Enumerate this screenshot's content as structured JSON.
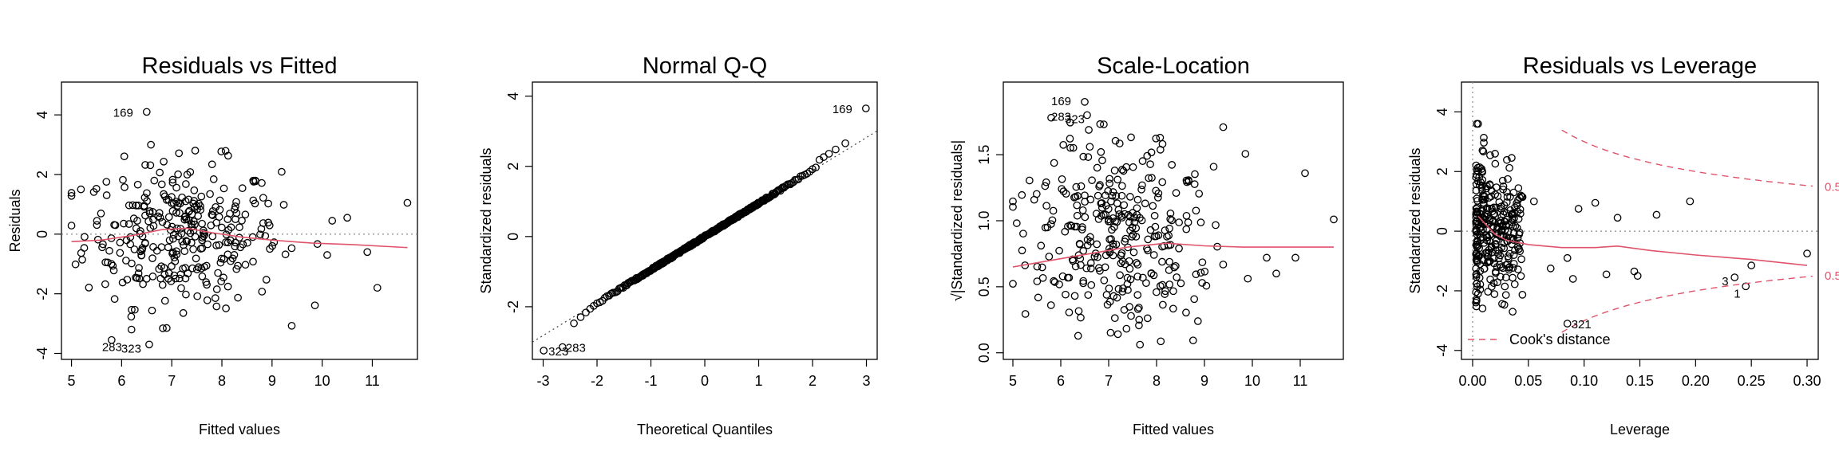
{
  "colors": {
    "smooth": "#DF536B",
    "points": "#000000",
    "reference": "#888888",
    "cook": "#DF536B"
  },
  "chart_data": [
    {
      "type": "scatter",
      "title": "Residuals vs Fitted",
      "xlabel": "Fitted values",
      "ylabel": "Residuals",
      "xlim": [
        4.8,
        11.9
      ],
      "ylim": [
        -4.2,
        5.1
      ],
      "xticks": [
        "5",
        "6",
        "7",
        "8",
        "9",
        "10",
        "11"
      ],
      "yticks": [
        "-4",
        "-2",
        "0",
        "2",
        "4"
      ],
      "reference_line": {
        "y": 0,
        "style": "dotted"
      },
      "smooth": {
        "x": [
          5.0,
          5.6,
          6.2,
          6.8,
          7.3,
          7.8,
          8.4,
          9.0,
          9.8,
          10.6,
          11.7
        ],
        "y": [
          -0.25,
          -0.2,
          -0.05,
          0.15,
          0.2,
          0.05,
          -0.1,
          -0.2,
          -0.3,
          -0.35,
          -0.45
        ]
      },
      "n_points": 330,
      "highlight": [
        {
          "x": 6.5,
          "y": 4.1,
          "label": "169"
        },
        {
          "x": 5.8,
          "y": -3.55,
          "label": "283"
        },
        {
          "x": 6.55,
          "y": -3.7,
          "label": "323"
        }
      ],
      "extra_points": [
        {
          "x": 10.2,
          "y": 0.45
        },
        {
          "x": 10.5,
          "y": 0.55
        },
        {
          "x": 10.1,
          "y": -0.7
        },
        {
          "x": 10.9,
          "y": -0.6
        },
        {
          "x": 11.1,
          "y": -1.8
        },
        {
          "x": 11.7,
          "y": 1.05
        }
      ],
      "cloud": {
        "x_center": 7.2,
        "x_spread": 1.5,
        "x_min": 5.0,
        "x_max": 10.0,
        "y_center": 0,
        "y_spread": 1.2,
        "y_clip": 3.2
      }
    },
    {
      "type": "scatter",
      "title": "Normal Q-Q",
      "xlabel": "Theoretical Quantiles",
      "ylabel": "Standardized residuals",
      "xlim": [
        -3.2,
        3.2
      ],
      "ylim": [
        -3.5,
        4.4
      ],
      "xticks": [
        "-3",
        "-2",
        "-1",
        "0",
        "1",
        "2",
        "3"
      ],
      "yticks": [
        "-2",
        "0",
        "2",
        "4"
      ],
      "reference_line": {
        "slope": 0.94,
        "intercept": 0.0,
        "style": "dotted"
      },
      "n_points": 330,
      "highlight": [
        {
          "x": 2.99,
          "y": 3.65,
          "label": "169"
        },
        {
          "x": -2.99,
          "y": -3.25,
          "label": "323"
        },
        {
          "x": -2.64,
          "y": -3.15,
          "label": "283"
        }
      ]
    },
    {
      "type": "scatter",
      "title": "Scale-Location",
      "xlabel": "Fitted values",
      "ylabel": "√|Standardized residuals|",
      "xlim": [
        4.8,
        11.9
      ],
      "ylim": [
        -0.05,
        2.05
      ],
      "xticks": [
        "5",
        "6",
        "7",
        "8",
        "9",
        "10",
        "11"
      ],
      "yticks": [
        "0.0",
        "0.5",
        "1.0",
        "1.5"
      ],
      "smooth": {
        "x": [
          5.0,
          5.8,
          6.6,
          7.4,
          8.2,
          9.0,
          9.8,
          10.6,
          11.7
        ],
        "y": [
          0.65,
          0.7,
          0.75,
          0.8,
          0.83,
          0.81,
          0.8,
          0.8,
          0.8
        ]
      },
      "n_points": 330,
      "highlight": [
        {
          "x": 6.5,
          "y": 1.9,
          "label": "169"
        },
        {
          "x": 5.8,
          "y": 1.78,
          "label": "283"
        },
        {
          "x": 6.55,
          "y": 1.8,
          "label": "323"
        }
      ],
      "extra_points": [
        {
          "x": 10.3,
          "y": 0.72
        },
        {
          "x": 10.5,
          "y": 0.6
        },
        {
          "x": 10.9,
          "y": 0.72
        },
        {
          "x": 11.1,
          "y": 1.36
        },
        {
          "x": 11.7,
          "y": 1.01
        }
      ],
      "cloud": {
        "x_center": 7.2,
        "x_spread": 1.5,
        "x_min": 5.0,
        "x_max": 10.0,
        "y_clip": 3.2
      }
    },
    {
      "type": "scatter",
      "title": "Residuals vs Leverage",
      "xlabel": "Leverage",
      "ylabel": "Standardized residuals",
      "xlim": [
        -0.01,
        0.31
      ],
      "ylim": [
        -4.3,
        5.0
      ],
      "xticks": [
        "0.00",
        "0.05",
        "0.10",
        "0.15",
        "0.20",
        "0.25",
        "0.30"
      ],
      "yticks": [
        "-4",
        "-2",
        "0",
        "2",
        "4"
      ],
      "reference_line": {
        "y": 0,
        "x": 0,
        "style": "dotted"
      },
      "smooth": {
        "x": [
          0.005,
          0.01,
          0.02,
          0.03,
          0.05,
          0.08,
          0.11,
          0.13,
          0.16,
          0.2,
          0.25,
          0.3
        ],
        "y": [
          0.5,
          0.3,
          -0.1,
          -0.3,
          -0.45,
          -0.55,
          -0.55,
          -0.5,
          -0.65,
          -0.8,
          -0.95,
          -1.15
        ]
      },
      "cook_contours": [
        {
          "label": "0.5",
          "sign": 1,
          "level": 0.5
        },
        {
          "label": "0.5",
          "sign": -1,
          "level": 0.5
        }
      ],
      "legend": {
        "text": "Cook's distance",
        "position": "bottom-left"
      },
      "n_points": 330,
      "highlight": [
        {
          "x": 0.235,
          "y": -1.55,
          "label": "3"
        },
        {
          "x": 0.245,
          "y": -1.85,
          "label": "1"
        },
        {
          "x": 0.085,
          "y": -3.1,
          "label": "321"
        }
      ],
      "extra_points": [
        {
          "x": 0.055,
          "y": 1.0
        },
        {
          "x": 0.095,
          "y": 0.75
        },
        {
          "x": 0.11,
          "y": 0.95
        },
        {
          "x": 0.13,
          "y": 0.45
        },
        {
          "x": 0.165,
          "y": 0.55
        },
        {
          "x": 0.195,
          "y": 1.0
        },
        {
          "x": 0.12,
          "y": -1.45
        },
        {
          "x": 0.145,
          "y": -1.35
        },
        {
          "x": 0.148,
          "y": -1.5
        },
        {
          "x": 0.25,
          "y": -1.15
        },
        {
          "x": 0.3,
          "y": -0.75
        },
        {
          "x": 0.09,
          "y": -1.6
        },
        {
          "x": 0.07,
          "y": -1.25
        },
        {
          "x": 0.085,
          "y": -0.9
        }
      ],
      "cloud": {
        "x_min": 0.003,
        "x_max": 0.045,
        "y_spread": 1.2,
        "y_clip": 3.6
      }
    }
  ]
}
